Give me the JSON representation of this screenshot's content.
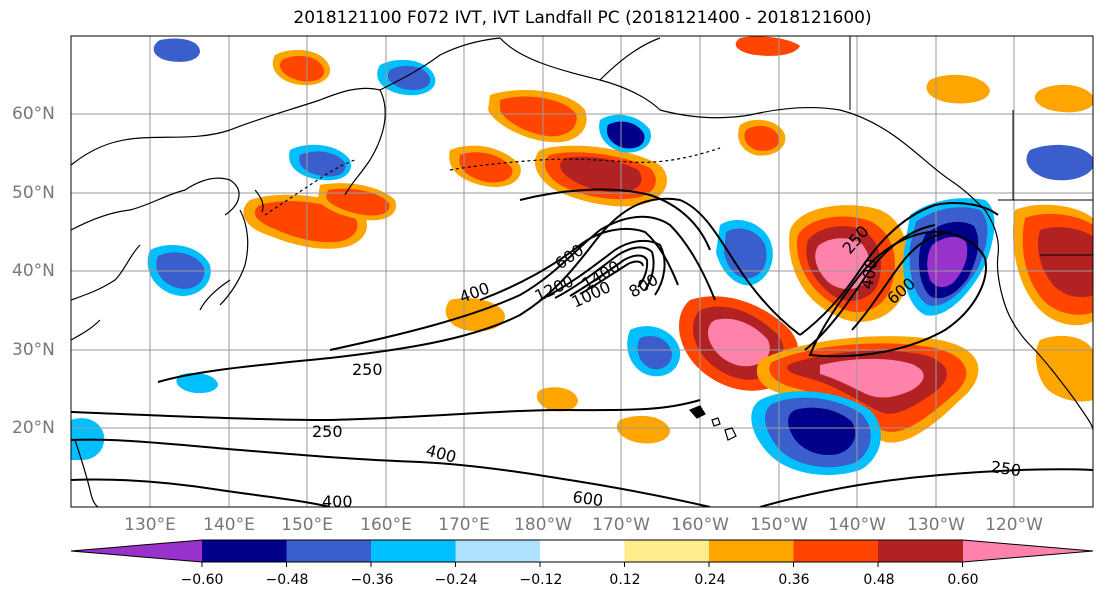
{
  "title": "2018121100 F072 IVT, IVT Landfall PC (2018121400 - 2018121600)",
  "lat_labels": [
    "60°N",
    "50°N",
    "40°N",
    "30°N",
    "20°N"
  ],
  "lon_labels": [
    "130°E",
    "140°E",
    "150°E",
    "160°E",
    "170°E",
    "180°W",
    "170°W",
    "160°W",
    "150°W",
    "140°W",
    "130°W",
    "120°W"
  ],
  "contour_labels": [
    "250",
    "400",
    "600",
    "800",
    "1000",
    "1200",
    "1400",
    "250",
    "400",
    "600",
    "250",
    "400",
    "600",
    "250",
    "400"
  ],
  "colorbar": {
    "colors": [
      "#9932cc",
      "#00008b",
      "#3a5fcd",
      "#00bfff",
      "#b0e2ff",
      "#ffffff",
      "#ffec8b",
      "#ffa500",
      "#ff4500",
      "#b22222",
      "#ff82ab"
    ],
    "ticks": [
      "−0.60",
      "−0.48",
      "−0.36",
      "−0.24",
      "−0.12",
      "0.12",
      "0.24",
      "0.36",
      "0.48",
      "0.60"
    ]
  },
  "colors": {
    "ocean": "#ffffff",
    "coast": "#000000",
    "grid": "#999999"
  }
}
